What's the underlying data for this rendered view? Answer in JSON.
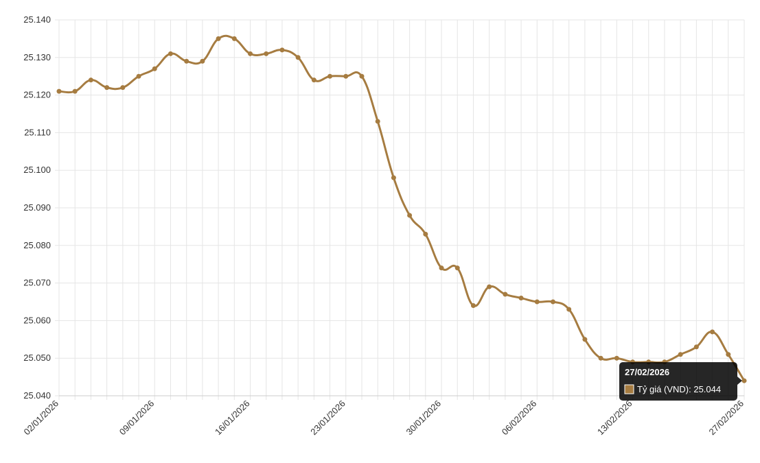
{
  "chart_data": {
    "type": "line",
    "categories": [
      "02/01/2026",
      null,
      null,
      null,
      null,
      null,
      "09/01/2026",
      null,
      null,
      null,
      null,
      null,
      "16/01/2026",
      null,
      null,
      null,
      null,
      null,
      "23/01/2026",
      null,
      null,
      null,
      null,
      null,
      "30/01/2026",
      null,
      null,
      null,
      null,
      null,
      "06/02/2026",
      null,
      null,
      null,
      null,
      null,
      "13/02/2026",
      null,
      null,
      null,
      null,
      null,
      null,
      "27/02/2026"
    ],
    "series": [
      {
        "name": "Tỷ giá (VND)",
        "color": "#a67c41",
        "values": [
          25.121,
          25.121,
          25.124,
          25.122,
          25.122,
          25.125,
          25.127,
          25.131,
          25.129,
          25.129,
          25.135,
          25.135,
          25.131,
          25.131,
          25.132,
          25.13,
          25.124,
          25.125,
          25.125,
          25.125,
          25.113,
          25.098,
          25.088,
          25.083,
          25.074,
          25.074,
          25.064,
          25.069,
          25.067,
          25.066,
          25.065,
          25.065,
          25.063,
          25.055,
          25.05,
          25.05,
          25.049,
          25.049,
          25.049,
          25.051,
          25.053,
          25.057,
          25.051,
          25.044
        ]
      }
    ],
    "ylim": [
      25.04,
      25.14
    ],
    "yticks": [
      {
        "value": 25.04,
        "label": "25.040"
      },
      {
        "value": 25.05,
        "label": "25.050"
      },
      {
        "value": 25.06,
        "label": "25.060"
      },
      {
        "value": 25.07,
        "label": "25.070"
      },
      {
        "value": 25.08,
        "label": "25.080"
      },
      {
        "value": 25.09,
        "label": "25.090"
      },
      {
        "value": 25.1,
        "label": "25.100"
      },
      {
        "value": 25.11,
        "label": "25.110"
      },
      {
        "value": 25.12,
        "label": "25.120"
      },
      {
        "value": 25.13,
        "label": "25.130"
      },
      {
        "value": 25.14,
        "label": "25.140"
      }
    ],
    "grid": true,
    "tooltip": {
      "title": "27/02/2026",
      "text": "Tỷ giá (VND): 25.044"
    }
  }
}
